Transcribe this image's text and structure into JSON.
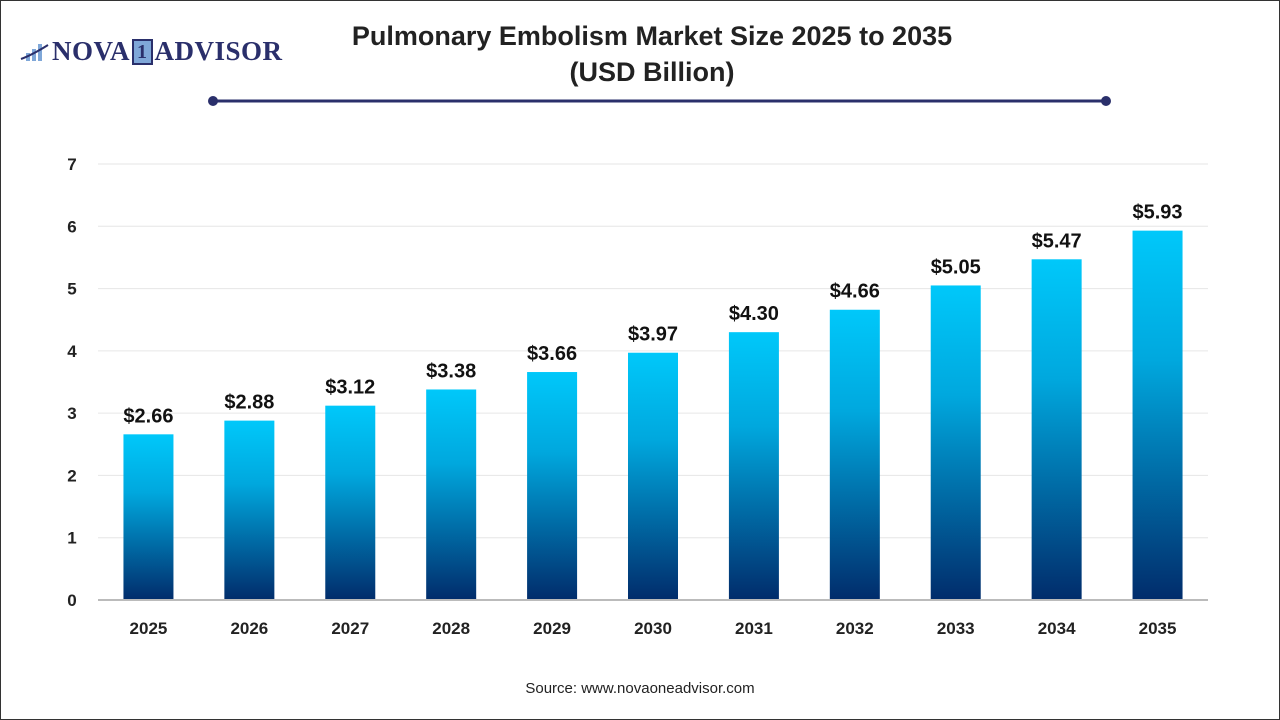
{
  "logo": {
    "text_left": "NOVA",
    "text_one": "1",
    "text_right": "ADVISOR"
  },
  "source": "Source: www.novaoneadvisor.com",
  "colors": {
    "bar_top": "#00C8FA",
    "bar_bottom": "#012C6B",
    "title_rule": "#2a2f6b",
    "grid": "#e6e6e6"
  },
  "chart_data": {
    "type": "bar",
    "title": "Pulmonary Embolism Market Size 2025 to 2035",
    "subtitle": "(USD Billion)",
    "categories": [
      "2025",
      "2026",
      "2027",
      "2028",
      "2029",
      "2030",
      "2031",
      "2032",
      "2033",
      "2034",
      "2035"
    ],
    "values": [
      2.66,
      2.88,
      3.12,
      3.38,
      3.66,
      3.97,
      4.3,
      4.66,
      5.05,
      5.47,
      5.93
    ],
    "data_labels": [
      "$2.66",
      "$2.88",
      "$3.12",
      "$3.38",
      "$3.66",
      "$3.97",
      "$4.30",
      "$4.66",
      "$5.05",
      "$5.47",
      "$5.93"
    ],
    "yticks": [
      0,
      1,
      2,
      3,
      4,
      5,
      6,
      7
    ],
    "ylim": [
      0,
      7
    ],
    "xlabel": "",
    "ylabel": "",
    "grid": true,
    "legend": "none"
  }
}
